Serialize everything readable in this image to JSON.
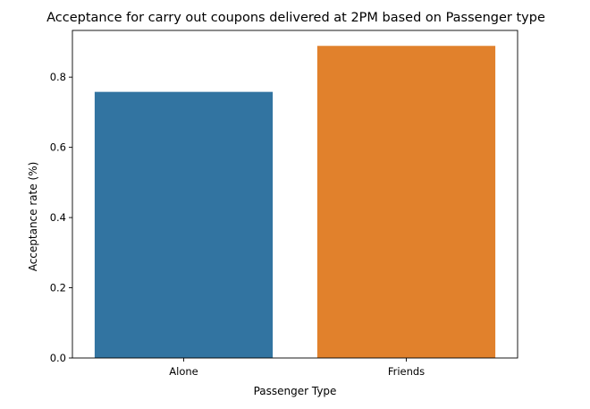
{
  "chart_data": {
    "type": "bar",
    "title": "Acceptance for carry out coupons delivered at 2PM based on Passenger type",
    "xlabel": "Passenger Type",
    "ylabel": "Acceptance rate (%)",
    "categories": [
      "Alone",
      "Friends"
    ],
    "values": [
      0.758,
      0.889
    ],
    "colors": [
      "#3274a1",
      "#e1812c"
    ],
    "ylim": [
      0,
      0.933
    ],
    "yticks": [
      0.0,
      0.2,
      0.4,
      0.6,
      0.8
    ],
    "ytick_labels": [
      "0.0",
      "0.2",
      "0.4",
      "0.6",
      "0.8"
    ],
    "grid": false,
    "legend": "none"
  }
}
